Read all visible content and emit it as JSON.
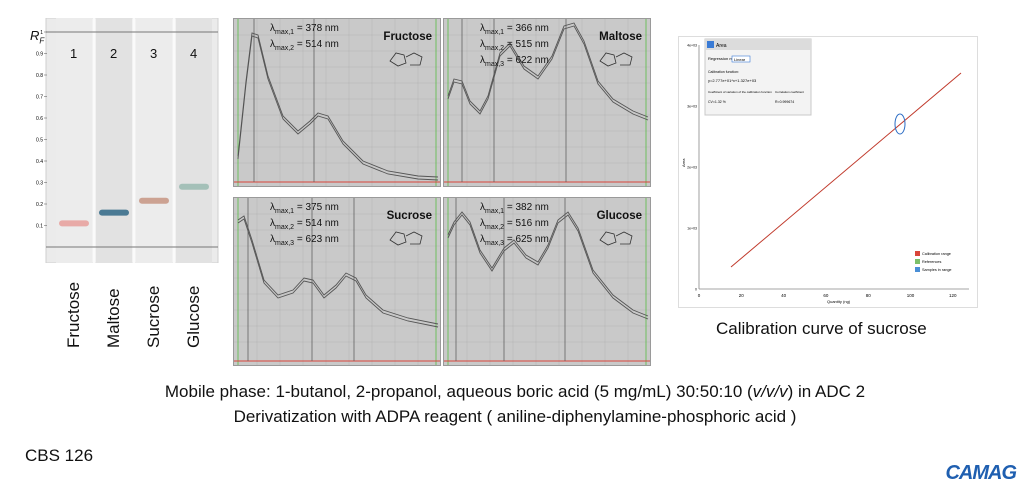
{
  "plate": {
    "rf_label": "R",
    "rf_sub": "F",
    "ticks": [
      "1",
      "0.9",
      "0.8",
      "0.7",
      "0.6",
      "0.5",
      "0.4",
      "0.3",
      "0.2",
      "0.1"
    ],
    "lane_numbers": [
      "1",
      "2",
      "3",
      "4"
    ],
    "lanes": [
      {
        "name": "Fructose",
        "rf": 0.11,
        "color": "#e8a3a0"
      },
      {
        "name": "Maltose",
        "rf": 0.16,
        "color": "#3b6f8c"
      },
      {
        "name": "Sucrose",
        "rf": 0.215,
        "color": "#c99a88"
      },
      {
        "name": "Glucose",
        "rf": 0.28,
        "color": "#9dbcb4"
      }
    ]
  },
  "spectra": [
    {
      "name": "Fructose",
      "lambda": [
        "= 378 nm",
        "= 514 nm"
      ],
      "subs": [
        "max,1",
        "max,2"
      ]
    },
    {
      "name": "Maltose",
      "lambda": [
        "= 366 nm",
        "= 515 nm",
        "= 622 nm"
      ],
      "subs": [
        "max,1",
        "max,2",
        "max,3"
      ]
    },
    {
      "name": "Sucrose",
      "lambda": [
        "= 375 nm",
        "= 514 nm",
        "= 623 nm"
      ],
      "subs": [
        "max,1",
        "max,2",
        "max,3"
      ]
    },
    {
      "name": "Glucose",
      "lambda": [
        "= 382 nm",
        "= 516 nm",
        "= 625 nm"
      ],
      "subs": [
        "max,1",
        "max,2",
        "max,3"
      ]
    }
  ],
  "calibration": {
    "caption": "Calibration curve of sucrose",
    "tab": "Area",
    "regression_label": "Regression mode:",
    "regression_value": "Linear",
    "cal_function_label": "Calibration function:",
    "cal_function": "y=2.777e+01*x+1.327e+03",
    "cv_label": "Coefficient of variation of the calibration function",
    "cv_value": "CV=1.32 %",
    "cc_label": "Correlation coefficient",
    "cc_value": "R=0.999674",
    "xlabel": "Quantity (ng)",
    "ylabel": "Area",
    "xticks": [
      "0",
      "20",
      "40",
      "60",
      "80",
      "100",
      "120"
    ],
    "yticks": [
      "0",
      "1e+03",
      "2e+03",
      "3e+03",
      "4e+03"
    ],
    "legend": [
      "Calibration range",
      "References",
      "Samples in range"
    ],
    "legend_colors": [
      "#d9453a",
      "#7cc06a",
      "#4a8fd6"
    ]
  },
  "footer": {
    "line1_a": "Mobile phase: 1-butanol, 2-propanol, aqueous boric acid (5 mg/mL) 30:50:10 (",
    "line1_i": "v/v/v",
    "line1_b": ") in ADC 2",
    "line2": "Derivatization with ADPA reagent ( aniline-diphenylamine-phosphoric acid )"
  },
  "code": "CBS 126",
  "logo": "CAMAG"
}
